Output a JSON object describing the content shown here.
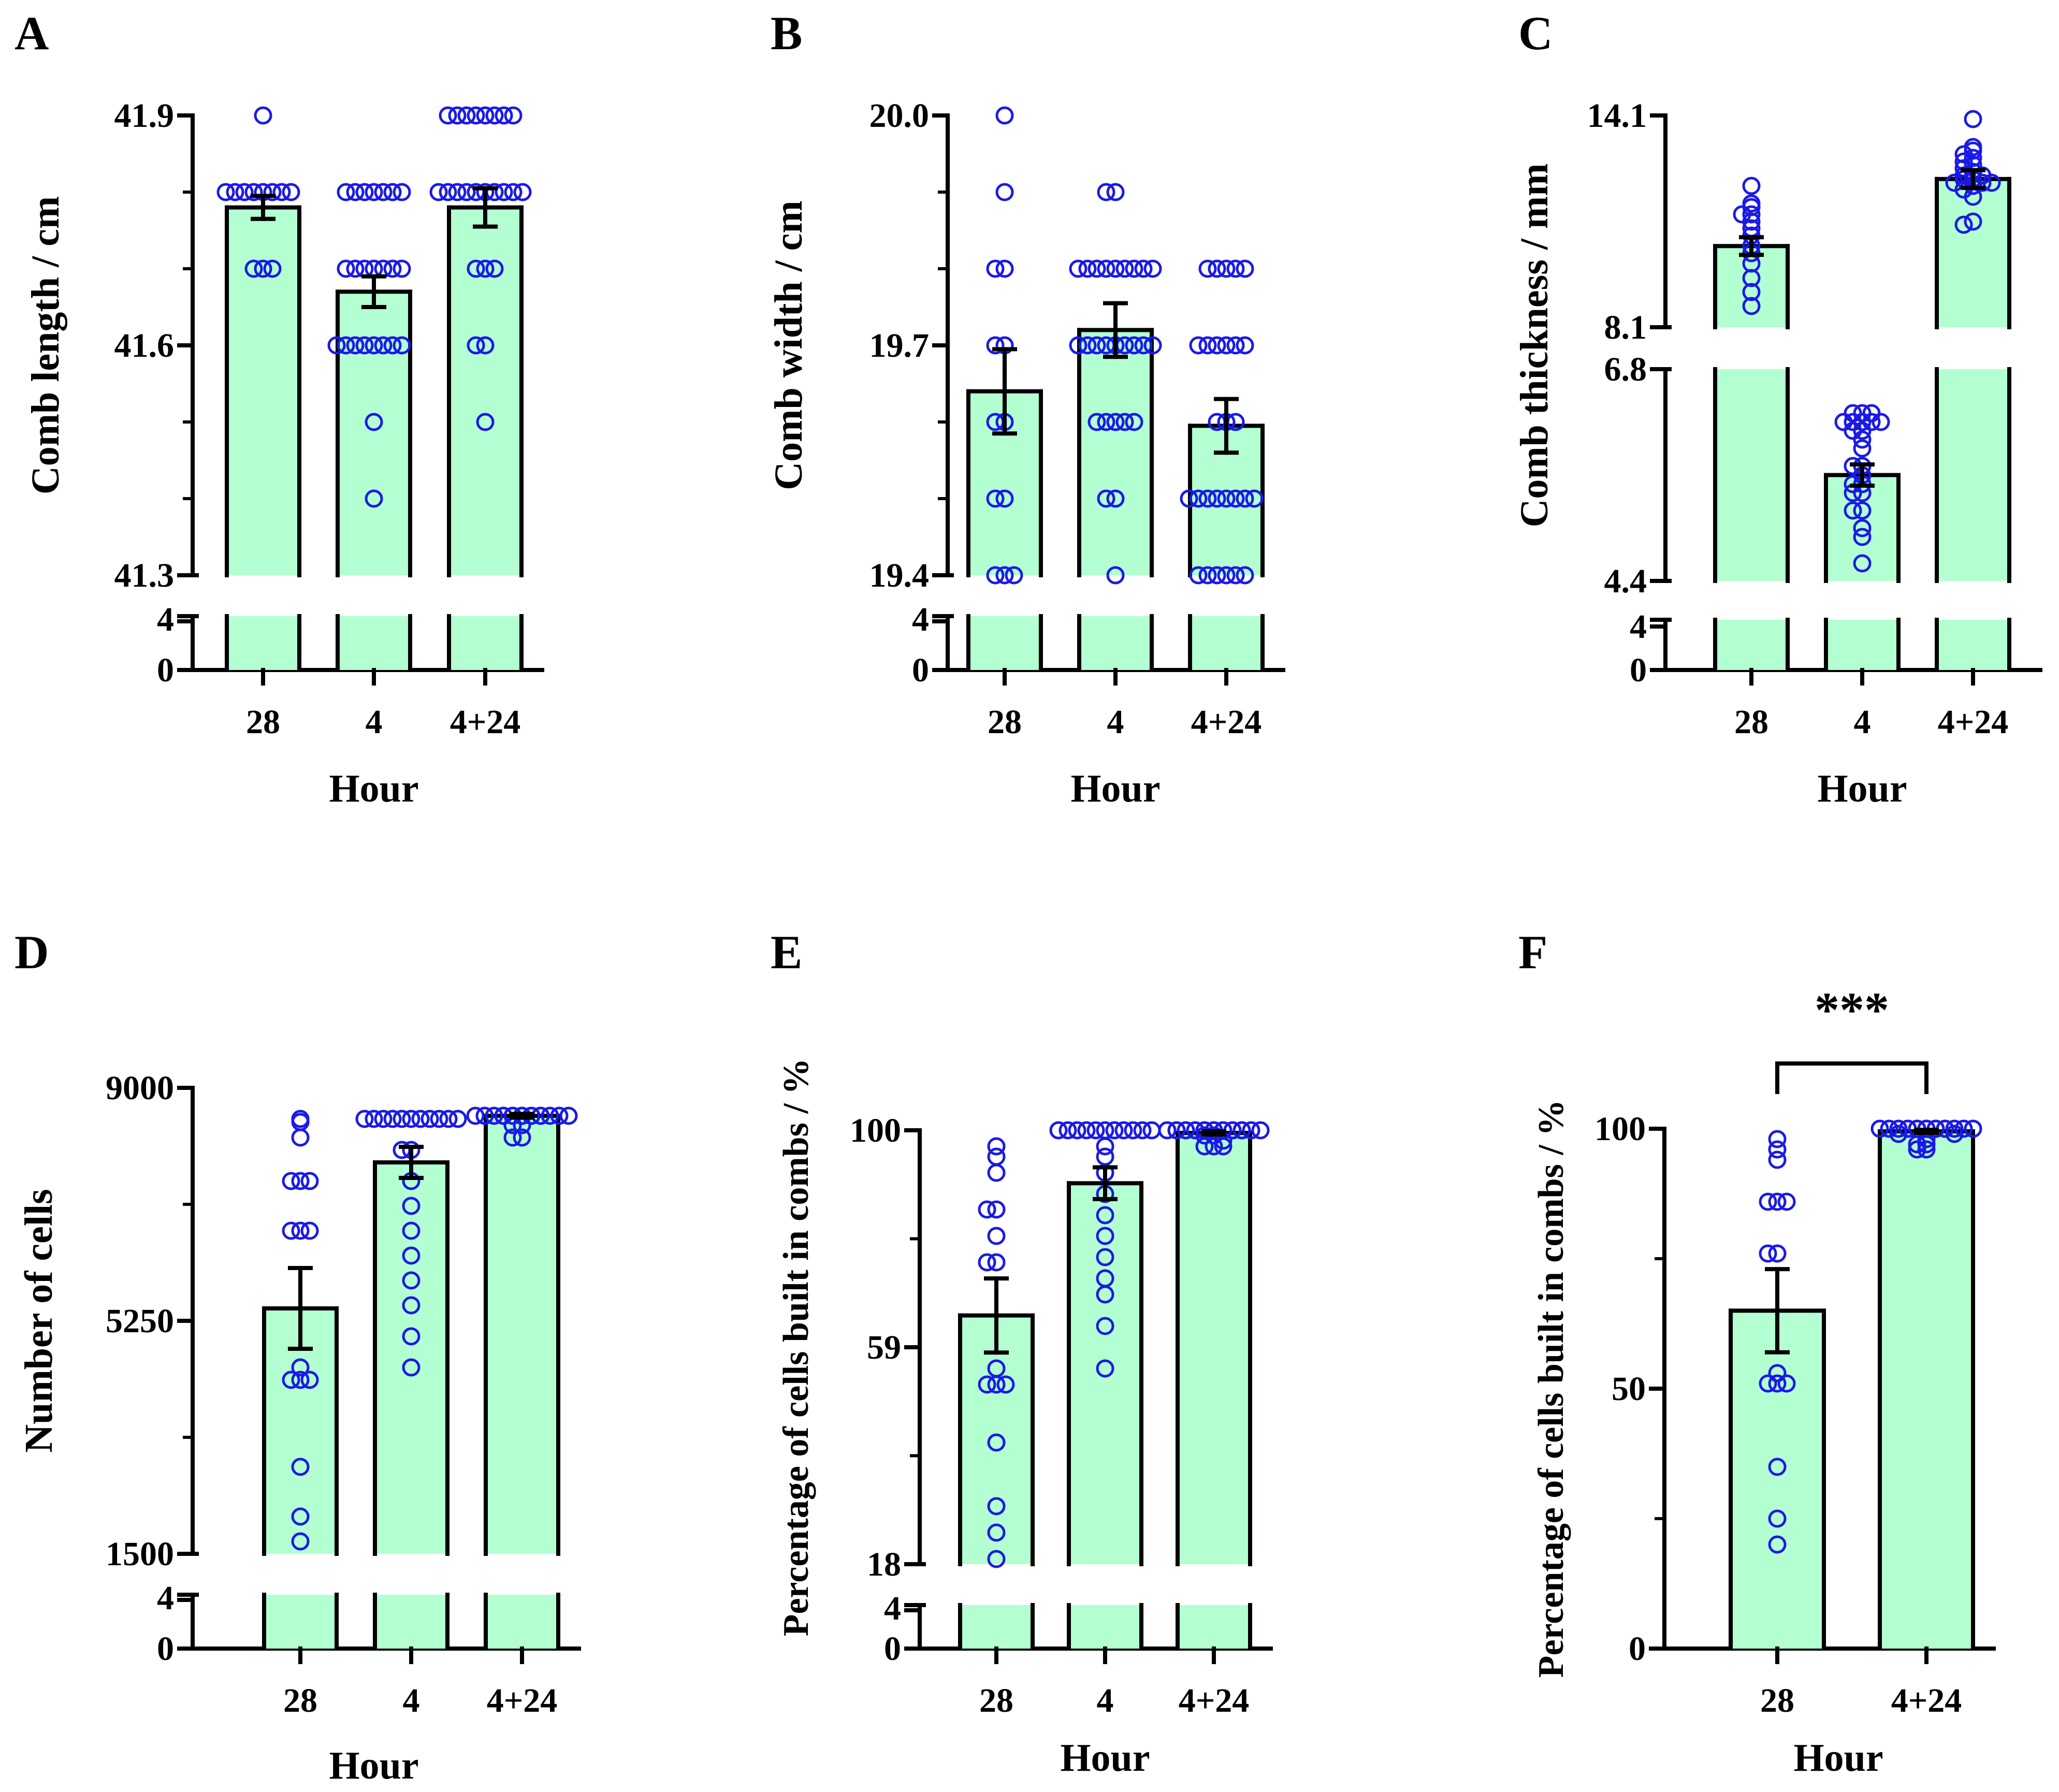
{
  "figure": {
    "background": "#ffffff",
    "bar_color": "#b3ffd2",
    "dot_color": "#1a1ae6"
  },
  "chart_data": [
    {
      "panel": "A",
      "type": "bar",
      "title": "",
      "xlabel": "Hour",
      "ylabel": "Comb length / cm",
      "categories": [
        "28",
        "4",
        "4+24"
      ],
      "upper_ticks": [
        "41.3",
        "41.6",
        "41.9"
      ],
      "lower_ticks": [
        "0",
        "4"
      ],
      "upper_ylim": [
        41.3,
        41.9
      ],
      "minor_step": 0.1,
      "means": [
        41.78,
        41.67,
        41.78
      ],
      "sem": [
        0.015,
        0.02,
        0.025
      ],
      "points": [
        [
          41.9,
          41.8,
          41.8,
          41.8,
          41.8,
          41.8,
          41.8,
          41.8,
          41.8,
          41.7,
          41.7,
          41.7
        ],
        [
          41.8,
          41.8,
          41.8,
          41.8,
          41.8,
          41.8,
          41.8,
          41.7,
          41.7,
          41.7,
          41.7,
          41.7,
          41.7,
          41.7,
          41.6,
          41.6,
          41.6,
          41.6,
          41.6,
          41.6,
          41.6,
          41.6,
          41.5,
          41.4
        ],
        [
          41.9,
          41.9,
          41.9,
          41.9,
          41.9,
          41.9,
          41.9,
          41.9,
          41.8,
          41.8,
          41.8,
          41.8,
          41.8,
          41.8,
          41.8,
          41.8,
          41.8,
          41.8,
          41.7,
          41.7,
          41.7,
          41.6,
          41.6,
          41.5
        ]
      ]
    },
    {
      "panel": "B",
      "type": "bar",
      "title": "",
      "xlabel": "Hour",
      "ylabel": "Comb width / cm",
      "categories": [
        "28",
        "4",
        "4+24"
      ],
      "upper_ticks": [
        "19.4",
        "19.7",
        "20.0"
      ],
      "lower_ticks": [
        "0",
        "4"
      ],
      "upper_ylim": [
        19.4,
        20.0
      ],
      "minor_step": 0.1,
      "means": [
        19.64,
        19.72,
        19.595
      ],
      "sem": [
        0.055,
        0.035,
        0.035
      ],
      "points": [
        [
          20.0,
          19.9,
          19.8,
          19.8,
          19.7,
          19.7,
          19.6,
          19.6,
          19.5,
          19.5,
          19.4,
          19.4,
          19.4
        ],
        [
          19.9,
          19.9,
          19.8,
          19.8,
          19.8,
          19.8,
          19.8,
          19.8,
          19.8,
          19.8,
          19.8,
          19.7,
          19.7,
          19.7,
          19.7,
          19.7,
          19.7,
          19.7,
          19.7,
          19.7,
          19.6,
          19.6,
          19.6,
          19.6,
          19.6,
          19.5,
          19.5,
          19.4
        ],
        [
          19.8,
          19.8,
          19.8,
          19.8,
          19.8,
          19.7,
          19.7,
          19.7,
          19.7,
          19.7,
          19.7,
          19.6,
          19.6,
          19.6,
          19.5,
          19.5,
          19.5,
          19.5,
          19.5,
          19.5,
          19.5,
          19.5,
          19.4,
          19.4,
          19.4,
          19.4,
          19.4,
          19.4
        ]
      ]
    },
    {
      "panel": "C",
      "type": "bar",
      "title": "",
      "xlabel": "Hour",
      "ylabel": "Comb thickness / mm",
      "categories": [
        "28",
        "4",
        "4+24"
      ],
      "top_ticks": [
        "8.1",
        "14.1"
      ],
      "mid_ticks": [
        "4.4",
        "6.8"
      ],
      "lower_ticks": [
        "0",
        "4"
      ],
      "top_ylim": [
        8.1,
        14.1
      ],
      "mid_ylim": [
        4.4,
        6.8
      ],
      "means": [
        10.4,
        5.6,
        12.3
      ],
      "sem": [
        0.25,
        0.12,
        0.25
      ],
      "points": [
        [
          12.1,
          11.5,
          11.6,
          11.3,
          11.1,
          11.3,
          10.9,
          10.7,
          10.4,
          10.2,
          9.9,
          9.5,
          9.1,
          8.7
        ],
        [
          6.0,
          6.3,
          6.3,
          6.3,
          6.2,
          6.2,
          6.2,
          6.2,
          6.2,
          6.1,
          6.1,
          5.9,
          5.7,
          5.7,
          5.6,
          5.5,
          5.5,
          5.4,
          5.4,
          5.2,
          5.2,
          5.0,
          4.9,
          4.6
        ],
        [
          14.0,
          13.2,
          13.1,
          13.0,
          12.9,
          12.8,
          12.7,
          12.6,
          12.5,
          12.4,
          12.4,
          12.3,
          12.3,
          12.2,
          12.2,
          12.2,
          12.1,
          12.0,
          11.8,
          11.1,
          11.0
        ]
      ]
    },
    {
      "panel": "D",
      "type": "bar",
      "title": "",
      "xlabel": "Hour",
      "ylabel": "Number of cells",
      "categories": [
        "28",
        "4",
        "4+24"
      ],
      "upper_ticks": [
        "1500",
        "5250",
        "9000"
      ],
      "lower_ticks": [
        "0",
        "4"
      ],
      "upper_ylim": [
        1500,
        9000
      ],
      "means": [
        5450,
        7800,
        8550
      ],
      "sem": [
        650,
        250,
        30
      ],
      "points": [
        [
          8500,
          8450,
          8200,
          7500,
          7500,
          7500,
          6700,
          6700,
          6700,
          4500,
          4300,
          4300,
          4300,
          2900,
          2100,
          1700
        ],
        [
          8500,
          8500,
          8500,
          8500,
          8500,
          8500,
          8500,
          8500,
          8500,
          8500,
          8500,
          8000,
          8000,
          7500,
          7100,
          6700,
          6300,
          5900,
          5500,
          5000,
          4500
        ],
        [
          8550,
          8550,
          8550,
          8550,
          8550,
          8550,
          8550,
          8550,
          8550,
          8550,
          8550,
          8550,
          8550,
          8550,
          8550,
          8550,
          8400,
          8400,
          8200,
          8200
        ]
      ]
    },
    {
      "panel": "E",
      "type": "bar",
      "title": "",
      "xlabel": "Hour",
      "ylabel": "Percentage of cells built in combs / %",
      "categories": [
        "28",
        "4",
        "4+24"
      ],
      "upper_ticks": [
        "18",
        "59",
        "100"
      ],
      "lower_ticks": [
        "0",
        "4"
      ],
      "upper_ylim": [
        18,
        100
      ],
      "means": [
        65,
        90,
        99.5
      ],
      "sem": [
        7,
        3,
        0.3
      ],
      "points": [
        [
          97,
          95,
          92,
          85,
          85,
          80,
          75,
          75,
          55,
          52,
          52,
          52,
          41,
          29,
          24,
          19
        ],
        [
          100,
          100,
          100,
          100,
          100,
          100,
          100,
          100,
          100,
          100,
          100,
          97,
          95,
          92,
          88,
          84,
          80,
          76,
          72,
          69,
          63,
          55
        ],
        [
          100,
          100,
          100,
          100,
          100,
          100,
          100,
          100,
          100,
          100,
          100,
          100,
          100,
          100,
          100,
          100,
          100,
          100,
          100,
          99,
          99,
          98,
          97,
          97,
          97
        ]
      ]
    },
    {
      "panel": "F",
      "type": "bar",
      "title": "",
      "xlabel": "Hour",
      "ylabel": "Percentage of cells built in combs / %",
      "categories": [
        "28",
        "4+24"
      ],
      "ticks": [
        "0",
        "50",
        "100"
      ],
      "ylim": [
        0,
        100
      ],
      "significance": "***",
      "means": [
        65,
        99.5
      ],
      "sem": [
        8,
        0.3
      ],
      "points": [
        [
          98,
          96,
          94,
          86,
          86,
          86,
          76,
          76,
          53,
          51,
          51,
          51,
          35,
          25,
          20
        ],
        [
          100,
          100,
          100,
          100,
          100,
          100,
          100,
          100,
          100,
          100,
          100,
          100,
          100,
          100,
          100,
          100,
          99,
          99,
          98,
          97,
          97,
          96,
          96
        ]
      ]
    }
  ]
}
